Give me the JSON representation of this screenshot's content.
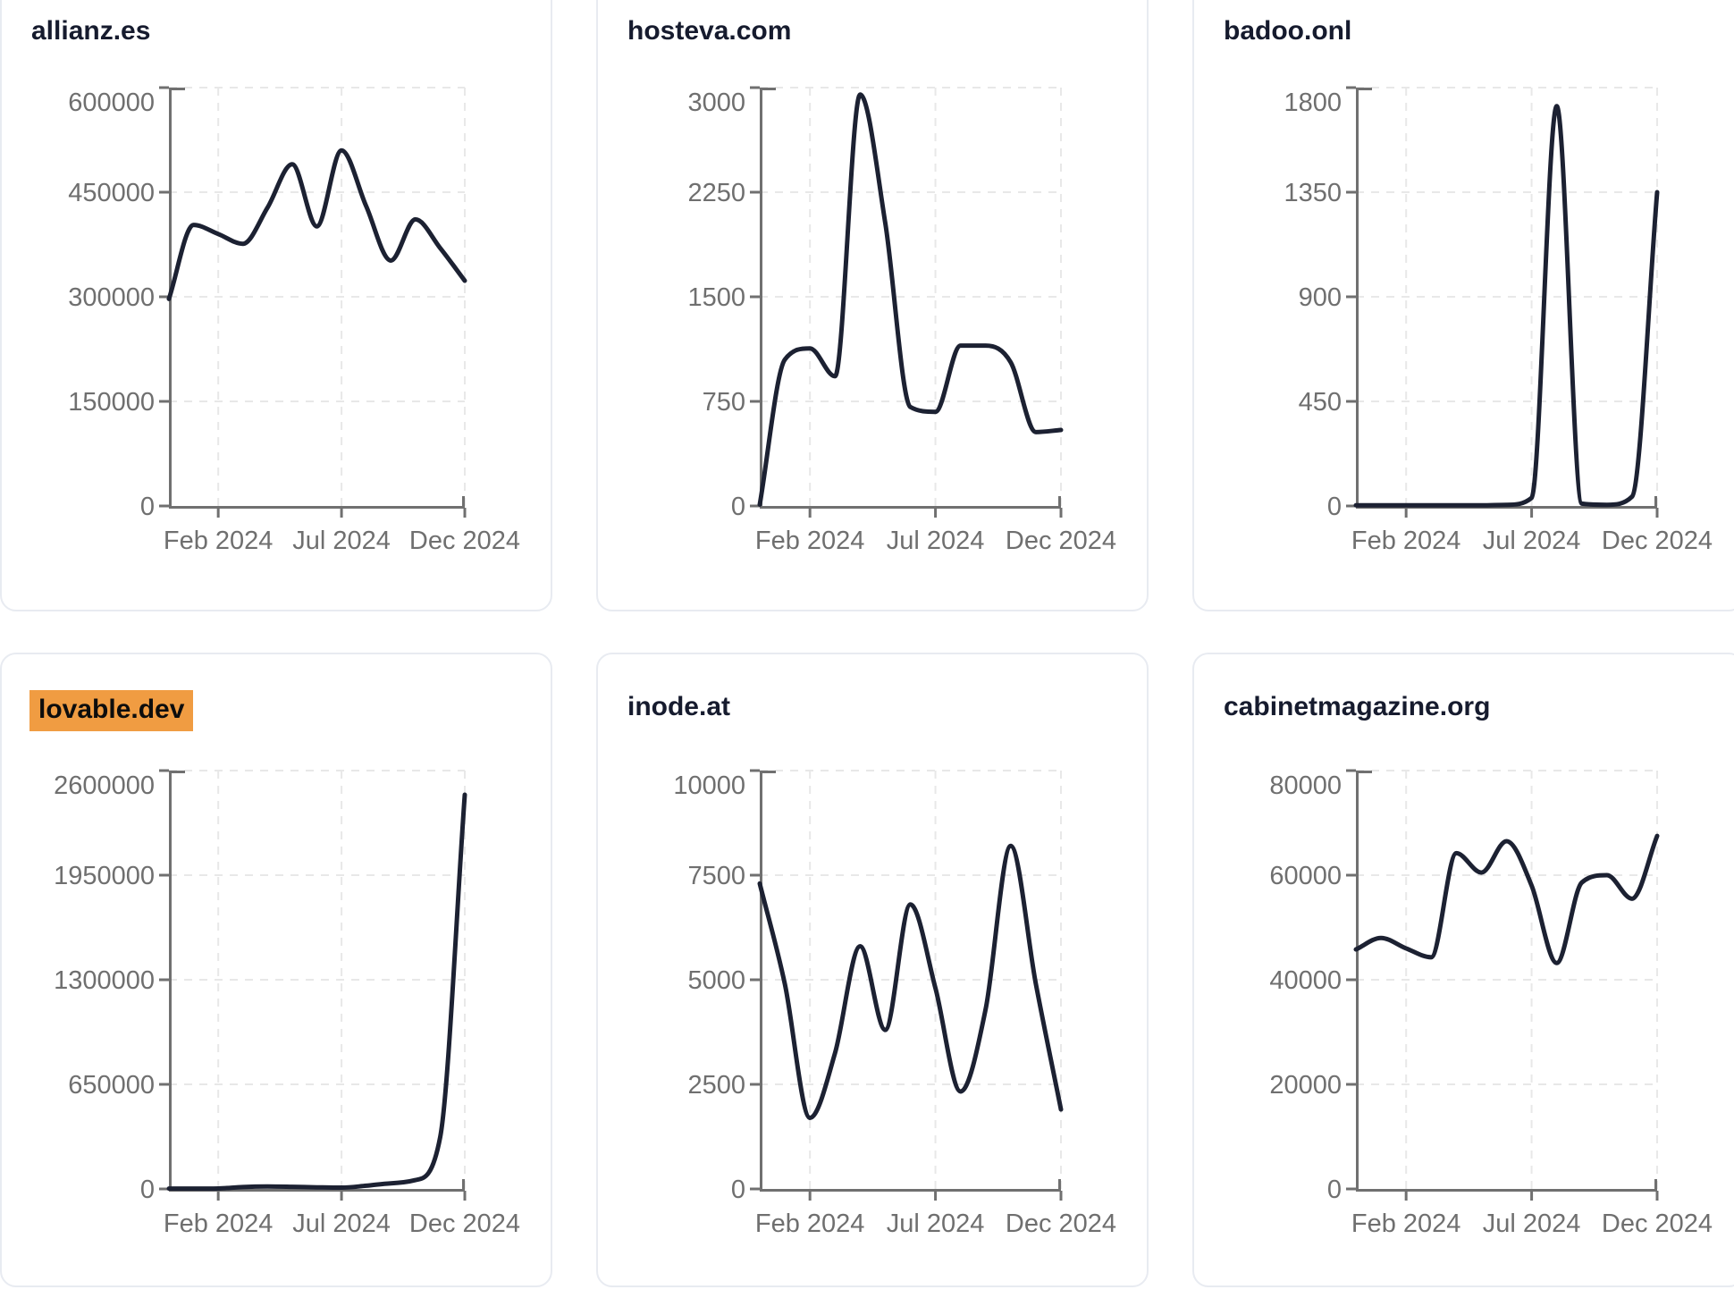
{
  "page": {
    "background": "#ffffff"
  },
  "theme": {
    "line_color": "#1c2132",
    "title_color": "#161b2e",
    "axis_color": "#707070",
    "tick_text_color": "#6f6f6f",
    "grid_color": "#e8e8e8",
    "card_border_color": "#e8ebf1",
    "highlight_bg": "#f09c42",
    "highlight_text": "#0d0d0d"
  },
  "cards": [
    {
      "title": "allianz.es",
      "highlighted": false
    },
    {
      "title": "hosteva.com",
      "highlighted": false
    },
    {
      "title": "badoo.onl",
      "highlighted": false
    },
    {
      "title": "lovable.dev",
      "highlighted": true
    },
    {
      "title": "inode.at",
      "highlighted": false
    },
    {
      "title": "cabinetmagazine.org",
      "highlighted": false
    }
  ],
  "chart_data": [
    {
      "type": "line",
      "title": "allianz.es",
      "x": [
        "Dec 2023",
        "Jan 2024",
        "Feb 2024",
        "Mar 2024",
        "Apr 2024",
        "May 2024",
        "Jun 2024",
        "Jul 2024",
        "Aug 2024",
        "Sep 2024",
        "Oct 2024",
        "Nov 2024",
        "Dec 2024"
      ],
      "values": [
        297000,
        403000,
        390000,
        376000,
        428000,
        490000,
        401000,
        510000,
        430000,
        352000,
        411000,
        370000,
        323000
      ],
      "ylim": [
        0,
        600000
      ],
      "y_ticks": [
        0,
        150000,
        300000,
        450000,
        600000
      ],
      "x_tick_labels": [
        "Feb 2024",
        "Jul 2024",
        "Dec 2024"
      ],
      "x_tick_indices": [
        2,
        7,
        12
      ],
      "grid": "dashed",
      "legend": "none"
    },
    {
      "type": "line",
      "title": "hosteva.com",
      "x": [
        "Dec 2023",
        "Jan 2024",
        "Feb 2024",
        "Mar 2024",
        "Apr 2024",
        "May 2024",
        "Jun 2024",
        "Jul 2024",
        "Aug 2024",
        "Sep 2024",
        "Oct 2024",
        "Nov 2024",
        "Dec 2024"
      ],
      "values": [
        10,
        1050,
        1130,
        930,
        2950,
        2030,
        710,
        675,
        1150,
        1150,
        1030,
        530,
        545
      ],
      "ylim": [
        0,
        3000
      ],
      "y_ticks": [
        0,
        750,
        1500,
        2250,
        3000
      ],
      "x_tick_labels": [
        "Feb 2024",
        "Jul 2024",
        "Dec 2024"
      ],
      "x_tick_indices": [
        2,
        7,
        12
      ],
      "grid": "dashed",
      "legend": "none"
    },
    {
      "type": "line",
      "title": "badoo.onl",
      "x": [
        "Dec 2023",
        "Jan 2024",
        "Feb 2024",
        "Mar 2024",
        "Apr 2024",
        "May 2024",
        "Jun 2024",
        "Jul 2024",
        "Aug 2024",
        "Sep 2024",
        "Oct 2024",
        "Nov 2024",
        "Dec 2024"
      ],
      "values": [
        3,
        3,
        3,
        3,
        3,
        3,
        5,
        35,
        1720,
        10,
        5,
        40,
        1350
      ],
      "ylim": [
        0,
        1800
      ],
      "y_ticks": [
        0,
        450,
        900,
        1350,
        1800
      ],
      "x_tick_labels": [
        "Feb 2024",
        "Jul 2024",
        "Dec 2024"
      ],
      "x_tick_indices": [
        2,
        7,
        12
      ],
      "grid": "dashed",
      "legend": "none"
    },
    {
      "type": "line",
      "title": "lovable.dev",
      "x": [
        "Dec 2023",
        "Jan 2024",
        "Feb 2024",
        "Mar 2024",
        "Apr 2024",
        "May 2024",
        "Jun 2024",
        "Jul 2024",
        "Aug 2024",
        "Sep 2024",
        "Oct 2024",
        "Nov 2024",
        "Dec 2024"
      ],
      "values": [
        2000,
        2000,
        3000,
        12000,
        15000,
        13000,
        10000,
        8000,
        20000,
        35000,
        55000,
        320000,
        2450000
      ],
      "ylim": [
        0,
        2600000
      ],
      "y_ticks": [
        0,
        650000,
        1300000,
        1950000,
        2600000
      ],
      "x_tick_labels": [
        "Feb 2024",
        "Jul 2024",
        "Dec 2024"
      ],
      "x_tick_indices": [
        2,
        7,
        12
      ],
      "grid": "dashed",
      "legend": "none"
    },
    {
      "type": "line",
      "title": "inode.at",
      "x": [
        "Dec 2023",
        "Jan 2024",
        "Feb 2024",
        "Mar 2024",
        "Apr 2024",
        "May 2024",
        "Jun 2024",
        "Jul 2024",
        "Aug 2024",
        "Sep 2024",
        "Oct 2024",
        "Nov 2024",
        "Dec 2024"
      ],
      "values": [
        7300,
        4900,
        1700,
        3250,
        5800,
        3800,
        6800,
        4800,
        2330,
        4300,
        8200,
        4900,
        1900
      ],
      "ylim": [
        0,
        10000
      ],
      "y_ticks": [
        0,
        2500,
        5000,
        7500,
        10000
      ],
      "x_tick_labels": [
        "Feb 2024",
        "Jul 2024",
        "Dec 2024"
      ],
      "x_tick_indices": [
        2,
        7,
        12
      ],
      "grid": "dashed",
      "legend": "none"
    },
    {
      "type": "line",
      "title": "cabinetmagazine.org",
      "x": [
        "Dec 2023",
        "Jan 2024",
        "Feb 2024",
        "Mar 2024",
        "Apr 2024",
        "May 2024",
        "Jun 2024",
        "Jul 2024",
        "Aug 2024",
        "Sep 2024",
        "Oct 2024",
        "Nov 2024",
        "Dec 2024"
      ],
      "values": [
        45800,
        48000,
        46000,
        44300,
        64200,
        60500,
        66500,
        58000,
        43200,
        58600,
        60000,
        55500,
        67500
      ],
      "ylim": [
        0,
        80000
      ],
      "y_ticks": [
        0,
        20000,
        40000,
        60000,
        80000
      ],
      "x_tick_labels": [
        "Feb 2024",
        "Jul 2024",
        "Dec 2024"
      ],
      "x_tick_indices": [
        2,
        7,
        12
      ],
      "grid": "dashed",
      "legend": "none"
    }
  ]
}
